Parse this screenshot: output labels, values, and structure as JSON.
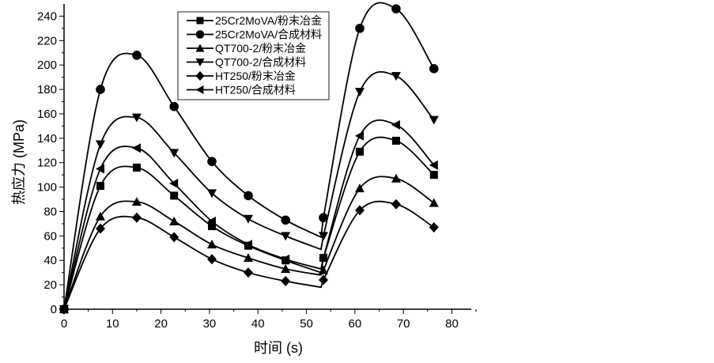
{
  "chart_data": {
    "type": "line",
    "title": "",
    "xlabel": "时间 (s)",
    "ylabel": "热应力 (MPa)",
    "xlim": [
      0,
      84
    ],
    "ylim": [
      0,
      250
    ],
    "xticks": [
      0,
      10,
      20,
      30,
      40,
      50,
      60,
      70,
      80
    ],
    "yticks": [
      0,
      20,
      40,
      60,
      80,
      100,
      120,
      140,
      160,
      180,
      200,
      220,
      240
    ],
    "grid": false,
    "legend_position": "top-center",
    "x_cycle1": [
      0,
      7.5,
      15,
      22.7,
      30.5,
      38,
      45.7,
      53
    ],
    "x_cycle2": [
      53.5,
      61,
      68.5,
      76.3
    ],
    "series": [
      {
        "name": "25Cr2MoVA/粉末冶金",
        "marker": "square",
        "cycle1": [
          0,
          101,
          116,
          93,
          68,
          52,
          40,
          30
        ],
        "cycle2": [
          42,
          129,
          138,
          110
        ]
      },
      {
        "name": "25Cr2MoVA/合成材料",
        "marker": "circle",
        "cycle1": [
          0,
          180,
          208,
          166,
          121,
          93,
          73,
          59
        ],
        "cycle2": [
          75,
          230,
          246,
          197
        ]
      },
      {
        "name": "QT700-2/粉末冶金",
        "marker": "triangle-up",
        "cycle1": [
          0,
          76,
          88,
          72,
          53,
          42,
          33,
          28
        ],
        "cycle2": [
          32,
          99,
          107,
          87
        ]
      },
      {
        "name": "QT700-2/合成材料",
        "marker": "triangle-down",
        "cycle1": [
          0,
          135,
          157,
          128,
          95,
          74,
          60,
          49
        ],
        "cycle2": [
          60,
          178,
          191,
          155
        ]
      },
      {
        "name": "HT250/粉末冶金",
        "marker": "diamond",
        "cycle1": [
          0,
          66,
          75,
          59,
          41,
          30,
          23,
          18
        ],
        "cycle2": [
          24,
          81,
          86,
          67
        ]
      },
      {
        "name": "HT250/合成材料",
        "marker": "triangle-left",
        "cycle1": [
          0,
          115,
          132,
          103,
          72,
          53,
          41,
          33
        ],
        "cycle2": [
          42,
          142,
          151,
          118
        ]
      }
    ]
  }
}
